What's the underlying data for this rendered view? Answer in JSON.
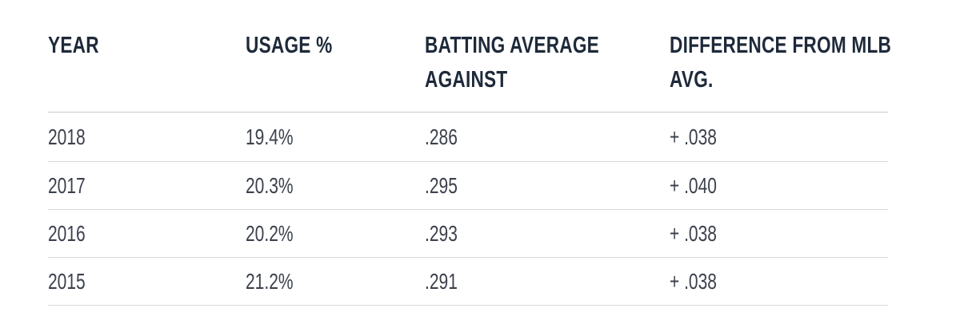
{
  "colors": {
    "header_text": "#1e2a3a",
    "body_text": "#3b414c",
    "divider": "#d9d9d9",
    "divider_strong": "#c9c9c9",
    "background": "#ffffff"
  },
  "chart_data": {
    "type": "table",
    "title": "",
    "columns": [
      "YEAR",
      "USAGE %",
      "BATTING AVERAGE AGAINST",
      "DIFFERENCE FROM MLB AVG."
    ],
    "columns_display": [
      "YEAR",
      "USAGE %",
      "BATTING AVERAGE\nAGAINST",
      "DIFFERENCE FROM MLB\nAVG."
    ],
    "rows": [
      [
        "2018",
        "19.4%",
        ".286",
        "+ .038"
      ],
      [
        "2017",
        "20.3%",
        ".295",
        "+ .040"
      ],
      [
        "2016",
        "20.2%",
        ".293",
        "+ .038"
      ],
      [
        "2015",
        "21.2%",
        ".291",
        "+ .038"
      ]
    ]
  }
}
